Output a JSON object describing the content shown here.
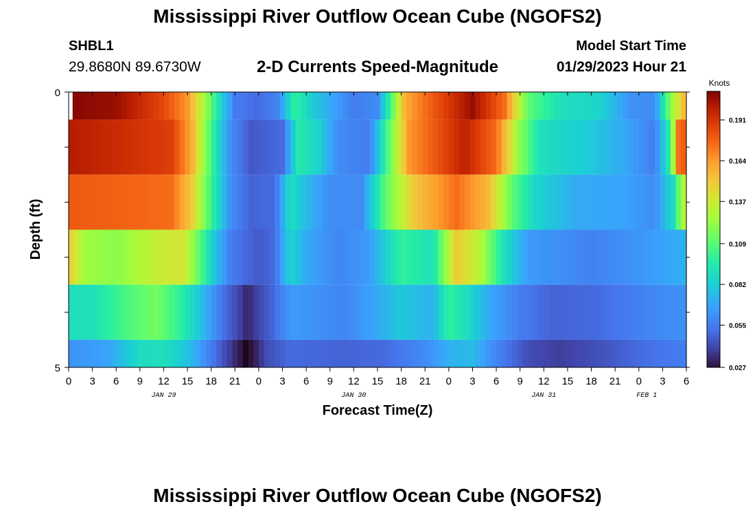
{
  "header": {
    "title": "Mississippi River Outflow Ocean Cube (NGOFS2)",
    "station_id": "SHBL1",
    "station_coords": "29.8680N  89.6730W",
    "subtitle": "2-D Currents Speed-Magnitude",
    "start_label": "Model Start Time",
    "start_value": "01/29/2023 Hour 21"
  },
  "footer": {
    "title": "Mississippi River Outflow Ocean Cube (NGOFS2)"
  },
  "chart_data": {
    "type": "heatmap",
    "xlabel": "Forecast Time(Z)",
    "ylabel": "Depth (ft)",
    "x_unit": "hours from 00Z Jan 29, 2023",
    "xlim": [
      0,
      78
    ],
    "ylim": [
      5,
      0
    ],
    "x_tick_labels": [
      "0",
      "3",
      "6",
      "9",
      "12",
      "15",
      "18",
      "21",
      "0",
      "3",
      "6",
      "9",
      "12",
      "15",
      "18",
      "21",
      "0",
      "3",
      "6",
      "9",
      "12",
      "15",
      "18",
      "21",
      "0",
      "3",
      "6"
    ],
    "y_tick_labels": [
      "0",
      "5"
    ],
    "date_labels": [
      {
        "hour": 12,
        "text": "JAN 29"
      },
      {
        "hour": 36,
        "text": "JAN 30"
      },
      {
        "hour": 60,
        "text": "JAN 31"
      },
      {
        "hour": 73,
        "text": "FEB 1"
      }
    ],
    "colorbar": {
      "title": "Knots",
      "min": 0.027,
      "max": 0.21,
      "tick_labels": [
        "0.191",
        "0.164",
        "0.137",
        "0.109",
        "0.082",
        "0.055",
        "0.027"
      ],
      "tick_values": [
        0.191,
        0.164,
        0.137,
        0.109,
        0.082,
        0.055,
        0.027
      ]
    },
    "layers": [
      {
        "depth_top": 0.0,
        "depth_bottom": 0.5,
        "knots": [
          {
            "hour": 0.5,
            "value": 0.208
          },
          {
            "hour": 6,
            "value": 0.205
          },
          {
            "hour": 12,
            "value": 0.185
          },
          {
            "hour": 15,
            "value": 0.165
          },
          {
            "hour": 17.5,
            "value": 0.12
          },
          {
            "hour": 19.5,
            "value": 0.08
          },
          {
            "hour": 21,
            "value": 0.055
          },
          {
            "hour": 24,
            "value": 0.05
          },
          {
            "hour": 26.5,
            "value": 0.058
          },
          {
            "hour": 28.5,
            "value": 0.1
          },
          {
            "hour": 31,
            "value": 0.08
          },
          {
            "hour": 36,
            "value": 0.055
          },
          {
            "hour": 39,
            "value": 0.06
          },
          {
            "hour": 40.5,
            "value": 0.1
          },
          {
            "hour": 42.5,
            "value": 0.16
          },
          {
            "hour": 46,
            "value": 0.18
          },
          {
            "hour": 51,
            "value": 0.205
          },
          {
            "hour": 55,
            "value": 0.175
          },
          {
            "hour": 58,
            "value": 0.11
          },
          {
            "hour": 62,
            "value": 0.09
          },
          {
            "hour": 67,
            "value": 0.085
          },
          {
            "hour": 71,
            "value": 0.062
          },
          {
            "hour": 74,
            "value": 0.06
          },
          {
            "hour": 76,
            "value": 0.12
          },
          {
            "hour": 78,
            "value": 0.16
          }
        ]
      },
      {
        "depth_top": 0.5,
        "depth_bottom": 1.5,
        "knots": [
          {
            "hour": 0,
            "value": 0.2
          },
          {
            "hour": 13,
            "value": 0.188
          },
          {
            "hour": 15.5,
            "value": 0.16
          },
          {
            "hour": 17,
            "value": 0.125
          },
          {
            "hour": 19,
            "value": 0.085
          },
          {
            "hour": 20.5,
            "value": 0.06
          },
          {
            "hour": 23,
            "value": 0.045
          },
          {
            "hour": 27,
            "value": 0.05
          },
          {
            "hour": 29,
            "value": 0.095
          },
          {
            "hour": 31.5,
            "value": 0.085
          },
          {
            "hour": 34,
            "value": 0.06
          },
          {
            "hour": 38,
            "value": 0.055
          },
          {
            "hour": 40,
            "value": 0.1
          },
          {
            "hour": 43,
            "value": 0.165
          },
          {
            "hour": 50,
            "value": 0.198
          },
          {
            "hour": 54,
            "value": 0.175
          },
          {
            "hour": 57,
            "value": 0.12
          },
          {
            "hour": 59.5,
            "value": 0.09
          },
          {
            "hour": 66,
            "value": 0.08
          },
          {
            "hour": 70,
            "value": 0.07
          },
          {
            "hour": 74,
            "value": 0.055
          },
          {
            "hour": 76,
            "value": 0.1
          },
          {
            "hour": 77,
            "value": 0.175
          },
          {
            "hour": 78,
            "value": 0.18
          }
        ]
      },
      {
        "depth_top": 1.5,
        "depth_bottom": 2.5,
        "knots": [
          {
            "hour": 0,
            "value": 0.18
          },
          {
            "hour": 13,
            "value": 0.175
          },
          {
            "hour": 15.5,
            "value": 0.15
          },
          {
            "hour": 17,
            "value": 0.12
          },
          {
            "hour": 19,
            "value": 0.085
          },
          {
            "hour": 20.5,
            "value": 0.06
          },
          {
            "hour": 23,
            "value": 0.048
          },
          {
            "hour": 26,
            "value": 0.05
          },
          {
            "hour": 28,
            "value": 0.09
          },
          {
            "hour": 30,
            "value": 0.075
          },
          {
            "hour": 33,
            "value": 0.06
          },
          {
            "hour": 37,
            "value": 0.06
          },
          {
            "hour": 40,
            "value": 0.11
          },
          {
            "hour": 43.5,
            "value": 0.15
          },
          {
            "hour": 49,
            "value": 0.175
          },
          {
            "hour": 53,
            "value": 0.155
          },
          {
            "hour": 56,
            "value": 0.11
          },
          {
            "hour": 59,
            "value": 0.085
          },
          {
            "hour": 64,
            "value": 0.07
          },
          {
            "hour": 70,
            "value": 0.068
          },
          {
            "hour": 74,
            "value": 0.06
          },
          {
            "hour": 76.5,
            "value": 0.09
          },
          {
            "hour": 77.5,
            "value": 0.13
          },
          {
            "hour": 78,
            "value": 0.13
          }
        ]
      },
      {
        "depth_top": 2.5,
        "depth_bottom": 3.5,
        "knots": [
          {
            "hour": 0,
            "value": 0.15
          },
          {
            "hour": 2,
            "value": 0.125
          },
          {
            "hour": 6,
            "value": 0.12
          },
          {
            "hour": 11,
            "value": 0.135
          },
          {
            "hour": 14.5,
            "value": 0.14
          },
          {
            "hour": 16.5,
            "value": 0.11
          },
          {
            "hour": 18.5,
            "value": 0.078
          },
          {
            "hour": 20.5,
            "value": 0.055
          },
          {
            "hour": 24,
            "value": 0.045
          },
          {
            "hour": 26,
            "value": 0.05
          },
          {
            "hour": 28,
            "value": 0.085
          },
          {
            "hour": 30,
            "value": 0.07
          },
          {
            "hour": 34,
            "value": 0.058
          },
          {
            "hour": 38,
            "value": 0.065
          },
          {
            "hour": 42,
            "value": 0.1
          },
          {
            "hour": 46,
            "value": 0.09
          },
          {
            "hour": 49,
            "value": 0.15
          },
          {
            "hour": 52,
            "value": 0.13
          },
          {
            "hour": 55,
            "value": 0.09
          },
          {
            "hour": 58,
            "value": 0.065
          },
          {
            "hour": 66,
            "value": 0.057
          },
          {
            "hour": 72,
            "value": 0.063
          },
          {
            "hour": 78,
            "value": 0.072
          }
        ]
      },
      {
        "depth_top": 3.5,
        "depth_bottom": 4.5,
        "knots": [
          {
            "hour": 0,
            "value": 0.09
          },
          {
            "hour": 3,
            "value": 0.09
          },
          {
            "hour": 7,
            "value": 0.105
          },
          {
            "hour": 11,
            "value": 0.115
          },
          {
            "hour": 14,
            "value": 0.1
          },
          {
            "hour": 17,
            "value": 0.075
          },
          {
            "hour": 19.5,
            "value": 0.052
          },
          {
            "hour": 21.5,
            "value": 0.04
          },
          {
            "hour": 22.5,
            "value": 0.032
          },
          {
            "hour": 24,
            "value": 0.04
          },
          {
            "hour": 26,
            "value": 0.05
          },
          {
            "hour": 28,
            "value": 0.065
          },
          {
            "hour": 31,
            "value": 0.062
          },
          {
            "hour": 35,
            "value": 0.058
          },
          {
            "hour": 39,
            "value": 0.07
          },
          {
            "hour": 42,
            "value": 0.08
          },
          {
            "hour": 46,
            "value": 0.072
          },
          {
            "hour": 48,
            "value": 0.1
          },
          {
            "hour": 50,
            "value": 0.09
          },
          {
            "hour": 53,
            "value": 0.07
          },
          {
            "hour": 57,
            "value": 0.055
          },
          {
            "hour": 61,
            "value": 0.048
          },
          {
            "hour": 67,
            "value": 0.05
          },
          {
            "hour": 73,
            "value": 0.058
          },
          {
            "hour": 78,
            "value": 0.062
          }
        ]
      },
      {
        "depth_top": 4.5,
        "depth_bottom": 5.0,
        "knots": [
          {
            "hour": 0,
            "value": 0.062
          },
          {
            "hour": 5,
            "value": 0.068
          },
          {
            "hour": 9,
            "value": 0.088
          },
          {
            "hour": 12,
            "value": 0.09
          },
          {
            "hour": 15,
            "value": 0.078
          },
          {
            "hour": 18,
            "value": 0.055
          },
          {
            "hour": 20,
            "value": 0.04
          },
          {
            "hour": 21.5,
            "value": 0.03
          },
          {
            "hour": 22.5,
            "value": 0.024
          },
          {
            "hour": 23.5,
            "value": 0.03
          },
          {
            "hour": 25,
            "value": 0.042
          },
          {
            "hour": 28,
            "value": 0.05
          },
          {
            "hour": 35,
            "value": 0.048
          },
          {
            "hour": 40,
            "value": 0.05
          },
          {
            "hour": 45,
            "value": 0.06
          },
          {
            "hour": 48,
            "value": 0.072
          },
          {
            "hour": 51,
            "value": 0.075
          },
          {
            "hour": 54,
            "value": 0.058
          },
          {
            "hour": 58,
            "value": 0.042
          },
          {
            "hour": 62,
            "value": 0.038
          },
          {
            "hour": 67,
            "value": 0.043
          },
          {
            "hour": 72,
            "value": 0.05
          },
          {
            "hour": 78,
            "value": 0.056
          }
        ]
      }
    ]
  }
}
